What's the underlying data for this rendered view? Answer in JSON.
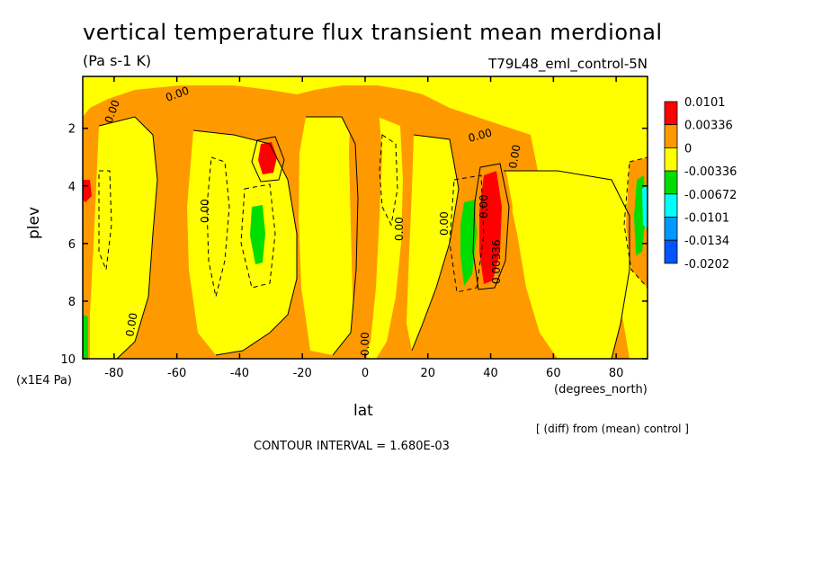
{
  "chart_data": {
    "type": "heatmap",
    "title": "vertical temperature flux transient mean merdional",
    "subtitle": "(Pa s-1 K)",
    "run_label": "T79L48_eml_control-5N",
    "xlabel": "lat",
    "x_units": "(degrees_north)",
    "ylabel": "plev",
    "y_units": "(x1E4 Pa)",
    "xlim": [
      -90,
      90
    ],
    "ylim": [
      10,
      0.2
    ],
    "x_ticks": [
      "-80",
      "-60",
      "-40",
      "-20",
      "0",
      "20",
      "40",
      "60",
      "80"
    ],
    "y_ticks": [
      "2",
      "4",
      "6",
      "8",
      "10"
    ],
    "legend": {
      "placement": "right",
      "levels": [
        "0.0101",
        "0.00336",
        "0",
        "-0.00336",
        "-0.00672",
        "-0.0101",
        "-0.0134",
        "-0.0202"
      ],
      "colors": [
        "#ff0000",
        "#ff9900",
        "#ffff00",
        "#00dd00",
        "#00ffff",
        "#0099ff",
        "#0055ff"
      ]
    },
    "contour_labels": [
      "0.00",
      "0.00336"
    ],
    "contour_interval_text": "CONTOUR INTERVAL = 1.680E-03",
    "diff_note": "[ (diff) from (mean) control ]"
  }
}
